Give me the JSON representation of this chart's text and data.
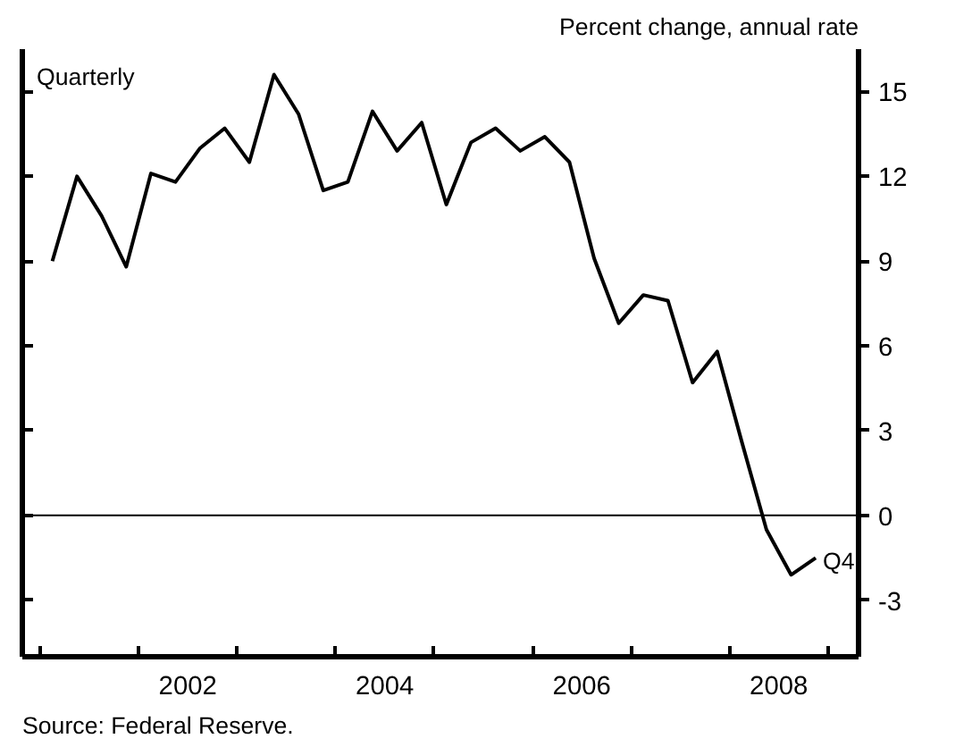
{
  "chart_data": {
    "type": "line",
    "ylabel": "Percent change, annual rate",
    "x": [
      2001.125,
      2001.375,
      2001.625,
      2001.875,
      2002.125,
      2002.375,
      2002.625,
      2002.875,
      2003.125,
      2003.375,
      2003.625,
      2003.875,
      2004.125,
      2004.375,
      2004.625,
      2004.875,
      2005.125,
      2005.375,
      2005.625,
      2005.875,
      2006.125,
      2006.375,
      2006.625,
      2006.875,
      2007.125,
      2007.375,
      2007.625,
      2007.875,
      2008.125,
      2008.375,
      2008.625,
      2008.875
    ],
    "series": [
      {
        "color": "#000000",
        "values": [
          9.0,
          12.0,
          10.6,
          8.8,
          12.1,
          11.8,
          13.0,
          13.7,
          12.5,
          15.6,
          14.2,
          11.5,
          11.8,
          14.3,
          12.9,
          13.9,
          11.0,
          13.2,
          13.7,
          12.9,
          13.4,
          12.5,
          9.1,
          6.8,
          7.8,
          7.6,
          4.7,
          5.8,
          2.6,
          -0.5,
          -2.1,
          -1.5
        ]
      }
    ],
    "xlim": [
      2000.82,
      2009.31
    ],
    "xticks": [
      {
        "value": 2001,
        "label": null
      },
      {
        "value": 2002,
        "label": null
      },
      {
        "value": 2003,
        "label": null
      },
      {
        "value": 2004,
        "label": null
      },
      {
        "value": 2005,
        "label": null
      },
      {
        "value": 2006,
        "label": null
      },
      {
        "value": 2007,
        "label": null
      },
      {
        "value": 2008,
        "label": null
      },
      {
        "value": 2009,
        "label": null
      },
      {
        "value": 2002.5,
        "label": "2002"
      },
      {
        "value": 2004.5,
        "label": "2004"
      },
      {
        "value": 2006.5,
        "label": "2006"
      },
      {
        "value": 2008.5,
        "label": "2008"
      }
    ],
    "ylim": [
      -5,
      16.5
    ],
    "yticks": [
      -3,
      0,
      3,
      6,
      9,
      12,
      15
    ],
    "ref_lines": [
      {
        "axis": "y",
        "value": 0,
        "color": "#000000"
      }
    ],
    "annotations": [
      "Quarterly",
      {
        "text": "Q4",
        "x": 2008.875,
        "y": -1.5
      },
      "Source:  Federal Reserve."
    ],
    "grid": false,
    "marker": "none",
    "line_style": "solid"
  }
}
